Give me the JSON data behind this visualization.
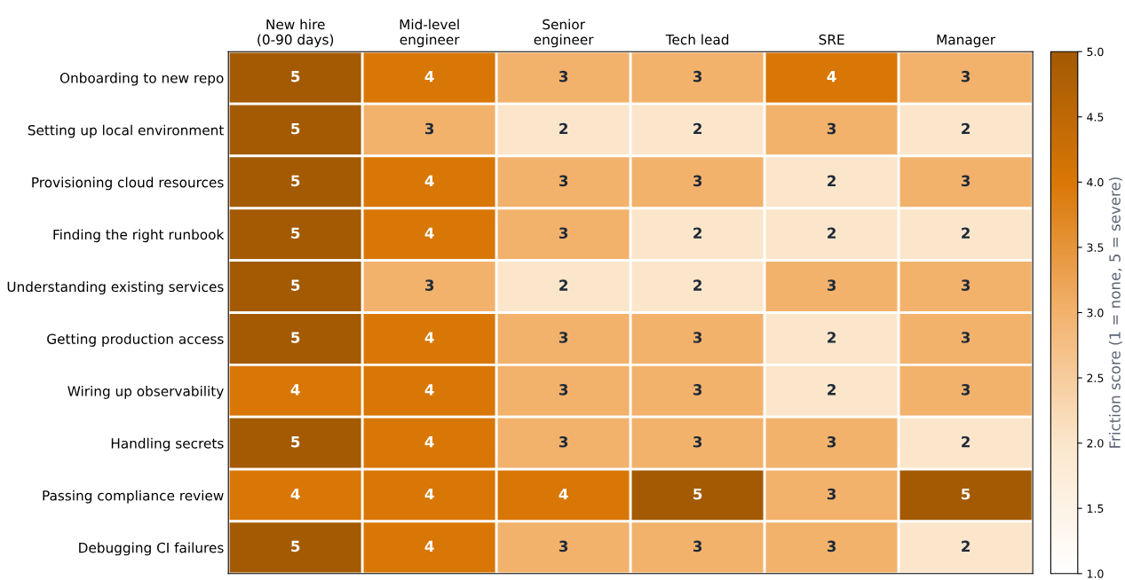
{
  "chart_data": {
    "type": "heatmap",
    "categories": [
      "New hire\n(0-90 days)",
      "Mid-level\nengineer",
      "Senior\nengineer",
      "Tech lead",
      "SRE",
      "Manager"
    ],
    "y_categories": [
      "Onboarding to new repo",
      "Setting up local environment",
      "Provisioning cloud resources",
      "Finding the right runbook",
      "Understanding existing services",
      "Getting production access",
      "Wiring up observability",
      "Handling secrets",
      "Passing compliance review",
      "Debugging CI failures"
    ],
    "cells": [
      [
        5,
        4,
        3,
        3,
        4,
        3
      ],
      [
        5,
        3,
        2,
        2,
        3,
        2
      ],
      [
        5,
        4,
        3,
        3,
        2,
        3
      ],
      [
        5,
        4,
        3,
        2,
        2,
        2
      ],
      [
        5,
        3,
        2,
        2,
        3,
        3
      ],
      [
        5,
        4,
        3,
        3,
        2,
        3
      ],
      [
        4,
        4,
        3,
        3,
        2,
        3
      ],
      [
        5,
        4,
        3,
        3,
        3,
        2
      ],
      [
        4,
        4,
        4,
        5,
        3,
        5
      ],
      [
        5,
        4,
        3,
        3,
        3,
        2
      ]
    ],
    "colors": [
      "#ffffff",
      "#fbe6cb",
      "#f2b26d",
      "#d97706",
      "#a35a03"
    ],
    "clim": [
      1,
      5
    ],
    "cticks": [
      {
        "value": 1,
        "label": "1.0"
      },
      {
        "value": 1.5,
        "label": "1.5"
      },
      {
        "value": 2,
        "label": "2.0"
      },
      {
        "value": 2.5,
        "label": "2.5"
      },
      {
        "value": 3,
        "label": "3.0"
      },
      {
        "value": 3.5,
        "label": "3.5"
      },
      {
        "value": 4,
        "label": "4.0"
      },
      {
        "value": 4.5,
        "label": "4.5"
      },
      {
        "value": 5,
        "label": "5.0"
      }
    ],
    "clabel": "Friction score (1 = none, 5 = severe)",
    "data_labels": true
  }
}
